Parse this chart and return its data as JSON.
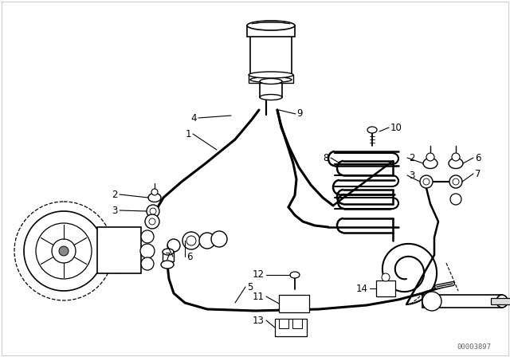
{
  "bg_color": "#ffffff",
  "line_color": "#000000",
  "label_color": "#000000",
  "part_number": "00003897",
  "figsize": [
    6.4,
    4.48
  ],
  "dpi": 100,
  "border_color": "#bbbbbb"
}
